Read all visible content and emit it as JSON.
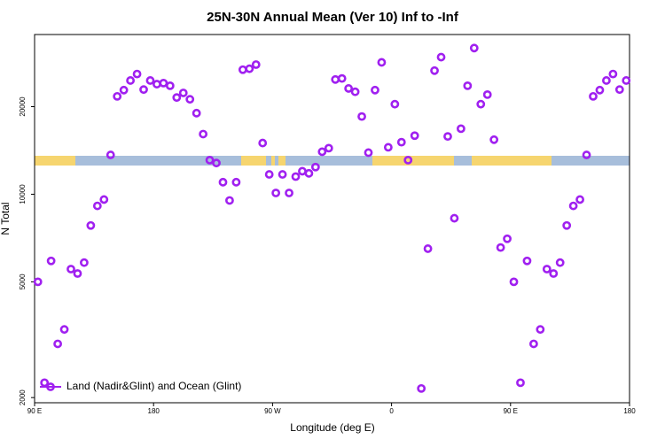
{
  "chart_data": {
    "type": "scatter",
    "title": "25N-30N Annual Mean (Ver 10)   Inf to -Inf",
    "x_label": "Longitude (deg E)",
    "y_label": "N Total",
    "xlim": [
      90,
      540
    ],
    "xticks": [
      {
        "value": 90,
        "label": "90 E"
      },
      {
        "value": 180,
        "label": "180"
      },
      {
        "value": 270,
        "label": "90 W"
      },
      {
        "value": 360,
        "label": "0"
      },
      {
        "value": 450,
        "label": "90 E"
      },
      {
        "value": 540,
        "label": "180"
      }
    ],
    "ylim": [
      1920,
      35400
    ],
    "yticks": [
      2000,
      5000,
      10000,
      20000
    ],
    "y_log": true,
    "legend_position": "lower left",
    "series": [
      {
        "name": "Land (Nadir&Glint) and Ocean (Glint)",
        "color": "#a020f0",
        "x": [
          92.5,
          97.5,
          102.5,
          107.5,
          112.5,
          117.5,
          122.5,
          127.5,
          132.5,
          137.5,
          142.5,
          147.5,
          152.5,
          157.5,
          162.5,
          167.5,
          172.5,
          177.5,
          182.5,
          187.5,
          192.5,
          197.5,
          202.5,
          207.5,
          212.5,
          217.5,
          222.5,
          227.5,
          232.5,
          237.5,
          242.5,
          247.5,
          252.5,
          257.5,
          262.5,
          267.5,
          272.5,
          277.5,
          282.5,
          287.5,
          292.5,
          297.5,
          302.5,
          307.5,
          312.5,
          317.5,
          322.5,
          327.5,
          332.5,
          337.5,
          342.5,
          347.5,
          352.5,
          357.5,
          362.5,
          367.5,
          372.5,
          377.5,
          382.5,
          387.5,
          392.5,
          397.5,
          402.5,
          407.5,
          412.5,
          417.5,
          422.5,
          427.5,
          432.5,
          437.5,
          442.5,
          447.5,
          452.5,
          457.5,
          462.5,
          467.5,
          472.5,
          477.5,
          482.5,
          487.5,
          492.5,
          497.5,
          502.5,
          507.5,
          512.5,
          517.5,
          522.5,
          527.5,
          532.5,
          537.5
        ],
        "values": [
          5000,
          2250,
          5900,
          3060,
          3430,
          5530,
          5340,
          5820,
          7810,
          9120,
          9590,
          13650,
          21700,
          22800,
          24600,
          25900,
          22900,
          24600,
          23900,
          24100,
          23600,
          21500,
          22300,
          21200,
          19000,
          16100,
          13100,
          12800,
          11000,
          9520,
          11000,
          26800,
          27000,
          27900,
          15000,
          11700,
          10100,
          11700,
          10100,
          11500,
          12000,
          11800,
          12400,
          14000,
          14400,
          24800,
          25000,
          23100,
          22500,
          18500,
          13900,
          22800,
          28400,
          14500,
          20400,
          15100,
          13100,
          15900,
          2150,
          6500,
          26600,
          29600,
          15800,
          8270,
          16800,
          23600,
          31800,
          20400,
          22000,
          15400,
          6560,
          7030,
          5000,
          2250,
          5900,
          3060,
          3430,
          5530,
          5340,
          5820,
          7810,
          9120,
          9590,
          13650,
          21700,
          22800,
          24600,
          25900,
          22900,
          24600
        ]
      }
    ]
  }
}
